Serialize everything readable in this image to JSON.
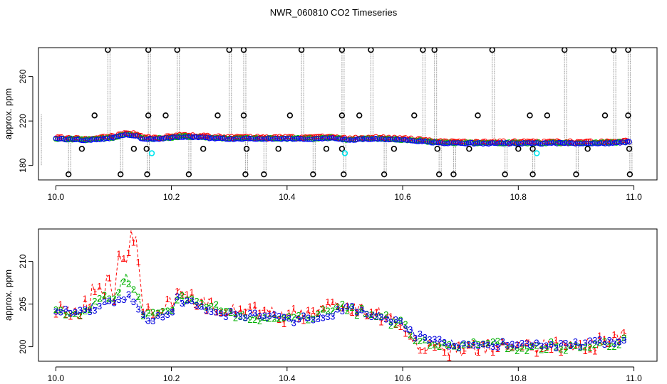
{
  "figure": {
    "title": "NWR_060810  CO2 Timeseries"
  },
  "chart_data": [
    {
      "type": "scatter",
      "title": "",
      "xlabel": "",
      "ylabel": "approx. ppm",
      "xlim": [
        9.97,
        11.04
      ],
      "ylim": [
        167,
        286
      ],
      "x_ticks": [
        10.0,
        10.2,
        10.4,
        10.6,
        10.8,
        11.0
      ],
      "x_tick_labels": [
        "10.0",
        "10.2",
        "10.4",
        "10.6",
        "10.8",
        "11.0"
      ],
      "y_ticks": [
        180,
        220,
        260
      ],
      "y_tick_labels": [
        "180",
        "220",
        "260"
      ],
      "grid": false,
      "legend": "none",
      "colors": {
        "series1": "#ff0000",
        "series2": "#00c000",
        "series3": "#0000ff",
        "outlier": "#000000",
        "flag": "#00e5ee",
        "spike": "#9a9a9a"
      },
      "baseline": {
        "x": [
          10.0,
          10.05,
          10.08,
          10.1,
          10.12,
          10.14,
          10.15,
          10.18,
          10.22,
          10.3,
          10.35,
          10.45,
          10.48,
          10.5,
          10.55,
          10.6,
          10.63,
          10.67,
          10.75,
          10.8,
          10.85,
          10.9,
          10.95,
          10.99
        ],
        "values": [
          204,
          203,
          204,
          205,
          208,
          207,
          204,
          204,
          206,
          204,
          204,
          204,
          205,
          203,
          204,
          203,
          202,
          200,
          200,
          200,
          200,
          200,
          200,
          201
        ]
      },
      "outliers_high": [
        10.09,
        10.16,
        10.21,
        10.3,
        10.325,
        10.425,
        10.495,
        10.545,
        10.635,
        10.655,
        10.755,
        10.88,
        10.965,
        10.99
      ],
      "outliers_high_value": 284,
      "outliers_low": [
        10.022,
        10.112,
        10.158,
        10.23,
        10.328,
        10.36,
        10.445,
        10.498,
        10.568,
        10.663,
        10.688,
        10.777,
        10.825,
        10.9,
        10.993
      ],
      "outliers_low_value": 172,
      "outliers_mid_high": [
        10.067,
        10.16,
        10.19,
        10.28,
        10.325,
        10.405,
        10.495,
        10.525,
        10.62,
        10.73,
        10.82,
        10.85,
        10.95,
        10.99
      ],
      "outliers_mid_high_value": 225,
      "outliers_mid_low": [
        10.045,
        10.135,
        10.157,
        10.255,
        10.33,
        10.385,
        10.468,
        10.495,
        10.585,
        10.66,
        10.715,
        10.8,
        10.825,
        10.92,
        10.992
      ],
      "outliers_mid_low_value": 195,
      "flags": [
        {
          "x": 10.166,
          "value": 191
        },
        {
          "x": 10.5,
          "value": 191
        },
        {
          "x": 10.832,
          "value": 191
        }
      ]
    },
    {
      "type": "scatter",
      "title": "",
      "xlabel": "",
      "ylabel": "approx. ppm",
      "xlim": [
        9.97,
        11.04
      ],
      "ylim": [
        198.3,
        213.8
      ],
      "x_ticks": [
        10.0,
        10.2,
        10.4,
        10.6,
        10.8,
        11.0
      ],
      "x_tick_labels": [
        "10.0",
        "10.2",
        "10.4",
        "10.6",
        "10.8",
        "11.0"
      ],
      "y_ticks": [
        200,
        205,
        210
      ],
      "y_tick_labels": [
        "200",
        "205",
        "210"
      ],
      "grid": false,
      "legend": "none",
      "marker_labels": {
        "series1": "1",
        "series2": "2",
        "series3": "3"
      },
      "colors": {
        "series1": "#ff0000",
        "series2": "#00b000",
        "series3": "#0000dd"
      },
      "series": [
        {
          "x": [
            10.0,
            10.02,
            10.04,
            10.06,
            10.065,
            10.08,
            10.09,
            10.1,
            10.11,
            10.12,
            10.13,
            10.14,
            10.15,
            10.16,
            10.18,
            10.2,
            10.21,
            10.22,
            10.25,
            10.3,
            10.35,
            10.4,
            10.45,
            10.47,
            10.48,
            10.5,
            10.55,
            10.6,
            10.62,
            10.64,
            10.66,
            10.7,
            10.75,
            10.8,
            10.85,
            10.9,
            10.95,
            10.99
          ],
          "values": [
            204.3,
            204.0,
            204.0,
            205.5,
            207.5,
            206.0,
            208.0,
            205.5,
            211.0,
            209.5,
            213.0,
            212.5,
            204.5,
            204.0,
            204.5,
            205.0,
            206.5,
            206.0,
            205.0,
            204.5,
            204.0,
            203.5,
            204.0,
            205.0,
            206.0,
            204.5,
            204.0,
            203.0,
            200.5,
            200.0,
            199.5,
            199.5,
            200.0,
            200.0,
            200.0,
            200.0,
            200.5,
            201.0
          ]
        },
        {
          "x": [
            10.0,
            10.02,
            10.04,
            10.06,
            10.08,
            10.1,
            10.11,
            10.12,
            10.13,
            10.14,
            10.15,
            10.16,
            10.18,
            10.2,
            10.21,
            10.22,
            10.25,
            10.3,
            10.35,
            10.4,
            10.45,
            10.48,
            10.5,
            10.55,
            10.6,
            10.62,
            10.64,
            10.66,
            10.7,
            10.75,
            10.8,
            10.85,
            10.9,
            10.95,
            10.99
          ],
          "values": [
            204.2,
            204.0,
            204.0,
            204.8,
            205.5,
            205.5,
            207.0,
            208.5,
            207.5,
            206.0,
            204.0,
            203.5,
            204.0,
            204.5,
            206.0,
            205.5,
            205.0,
            204.0,
            203.5,
            203.0,
            203.5,
            204.5,
            204.5,
            203.8,
            202.5,
            201.0,
            200.5,
            200.0,
            200.0,
            200.5,
            199.8,
            200.2,
            200.0,
            200.3,
            200.8
          ]
        },
        {
          "x": [
            10.0,
            10.02,
            10.04,
            10.06,
            10.08,
            10.1,
            10.11,
            10.12,
            10.13,
            10.14,
            10.15,
            10.16,
            10.18,
            10.2,
            10.21,
            10.22,
            10.25,
            10.3,
            10.35,
            10.4,
            10.45,
            10.48,
            10.5,
            10.55,
            10.6,
            10.62,
            10.64,
            10.66,
            10.7,
            10.75,
            10.8,
            10.85,
            10.9,
            10.95,
            10.99
          ],
          "values": [
            204.3,
            204.0,
            203.9,
            204.5,
            205.0,
            205.0,
            205.5,
            206.0,
            205.5,
            205.0,
            203.5,
            203.0,
            203.8,
            204.0,
            205.5,
            205.2,
            204.8,
            203.8,
            203.5,
            203.2,
            203.3,
            204.0,
            204.5,
            203.8,
            202.5,
            201.5,
            200.8,
            200.5,
            200.3,
            200.5,
            200.0,
            200.3,
            200.2,
            200.5,
            201.0
          ]
        }
      ]
    }
  ]
}
